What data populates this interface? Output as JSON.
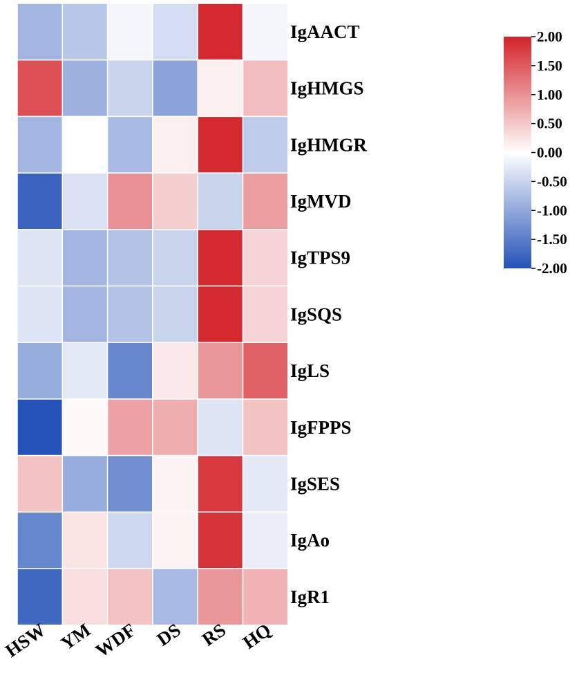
{
  "chart_data": {
    "type": "heatmap",
    "columns": [
      "HSW",
      "YM",
      "WDF",
      "DS",
      "RS",
      "HQ"
    ],
    "rows": [
      "IgAACT",
      "IgHMGS",
      "IgHMGR",
      "IgMVD",
      "IgTPS9",
      "IgSQS",
      "IgLS",
      "IgFPPS",
      "IgSES",
      "IgAo",
      "IgR1"
    ],
    "values": [
      [
        -0.85,
        -0.65,
        -0.1,
        -0.4,
        1.95,
        -0.1
      ],
      [
        1.6,
        -0.9,
        -0.5,
        -1.05,
        0.15,
        0.6
      ],
      [
        -0.85,
        0.0,
        -0.8,
        0.15,
        1.95,
        -0.6
      ],
      [
        -1.8,
        -0.35,
        1.0,
        0.45,
        -0.5,
        0.9
      ],
      [
        -0.3,
        -0.85,
        -0.7,
        -0.5,
        1.95,
        0.4
      ],
      [
        -0.3,
        -0.85,
        -0.7,
        -0.5,
        1.95,
        0.4
      ],
      [
        -0.95,
        -0.25,
        -1.4,
        0.2,
        0.95,
        1.45
      ],
      [
        -2.0,
        0.05,
        0.85,
        0.75,
        -0.3,
        0.55
      ],
      [
        0.55,
        -0.95,
        -1.3,
        0.1,
        1.8,
        -0.25
      ],
      [
        -1.4,
        0.25,
        -0.45,
        0.1,
        1.85,
        -0.2
      ],
      [
        -1.75,
        0.3,
        0.55,
        -0.8,
        0.95,
        0.7
      ]
    ],
    "vmin": -2.0,
    "vmax": 2.0,
    "colorbar": {
      "ticks": [
        "2.00",
        "1.50",
        "1.00",
        "0.50",
        "0.00",
        "-0.50",
        "-1.00",
        "-1.50",
        "-2.00"
      ],
      "colors": {
        "low": "#2552b8",
        "mid": "#ffffff",
        "high": "#d3232a"
      }
    }
  }
}
